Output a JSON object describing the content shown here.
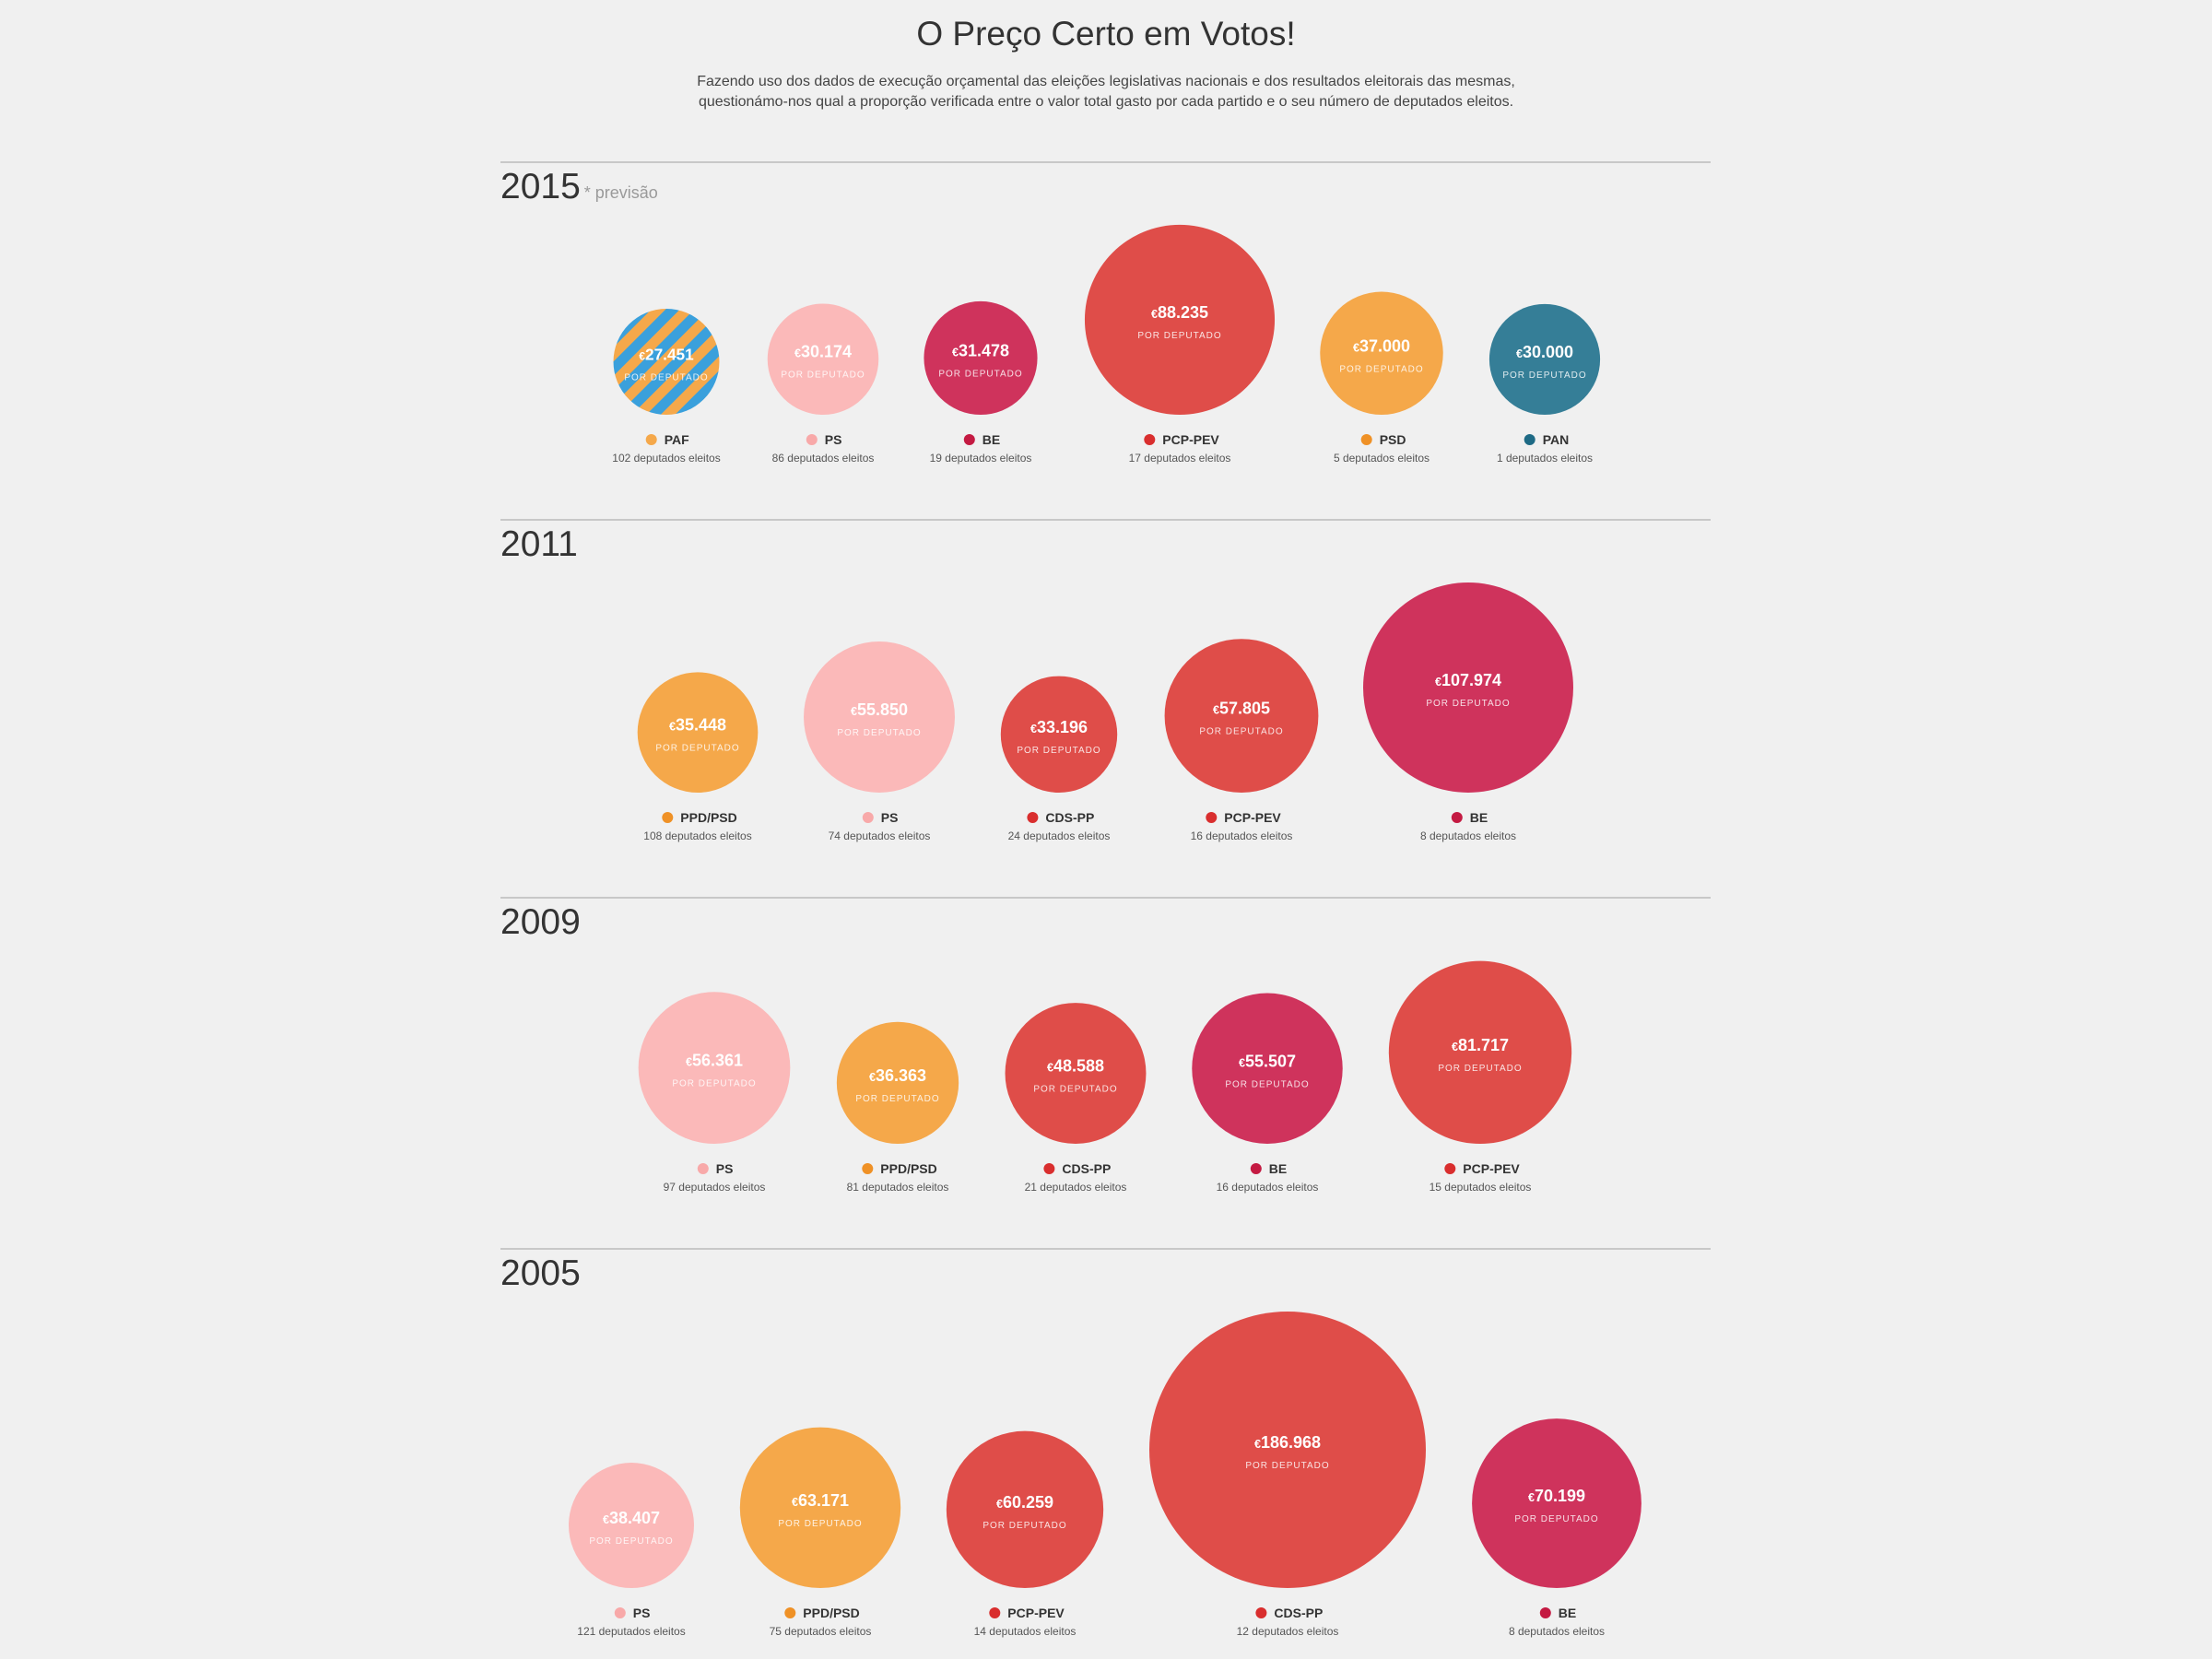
{
  "page": {
    "title": "O Preço Certo em Votos!",
    "subtitle_line1": "Fazendo uso dos dados de execução orçamental das eleições legislativas nacionais e dos resultados eleitorais das mesmas,",
    "subtitle_line2": "questionámo-nos qual a proporção verificada entre o valor total gasto por cada partido e o seu número de deputados eleitos."
  },
  "common": {
    "currency_symbol": "€",
    "per_label": "POR DEPUTADO",
    "seats_suffix": "deputados eleitos"
  },
  "colors": {
    "ps": "#fbb9b9",
    "psd": "#f5a84a",
    "cds": "#df4d49",
    "pcp": "#df4d49",
    "be": "#cf335c",
    "pan": "#357e97",
    "paf_blue": "#3aa0dc",
    "paf_orange": "#f5a84a",
    "dot_ps": "#f8a9a9",
    "dot_psd": "#ef9126",
    "dot_red": "#d92e2e",
    "dot_be": "#c41a42",
    "dot_pan": "#1e6a85"
  },
  "chart_data": [
    {
      "type": "bubble",
      "year": "2015",
      "note": "* previsão",
      "series": [
        {
          "party": "PAF",
          "cost_per_deputy": "27.451",
          "deputies": 102,
          "color": "paf"
        },
        {
          "party": "PS",
          "cost_per_deputy": "30.174",
          "deputies": 86,
          "color": "ps"
        },
        {
          "party": "BE",
          "cost_per_deputy": "31.478",
          "deputies": 19,
          "color": "be"
        },
        {
          "party": "PCP-PEV",
          "cost_per_deputy": "88.235",
          "deputies": 17,
          "color": "pcp"
        },
        {
          "party": "PSD",
          "cost_per_deputy": "37.000",
          "deputies": 5,
          "color": "psd"
        },
        {
          "party": "PAN",
          "cost_per_deputy": "30.000",
          "deputies": 1,
          "color": "pan"
        }
      ]
    },
    {
      "type": "bubble",
      "year": "2011",
      "note": "",
      "series": [
        {
          "party": "PPD/PSD",
          "cost_per_deputy": "35.448",
          "deputies": 108,
          "color": "psd"
        },
        {
          "party": "PS",
          "cost_per_deputy": "55.850",
          "deputies": 74,
          "color": "ps"
        },
        {
          "party": "CDS-PP",
          "cost_per_deputy": "33.196",
          "deputies": 24,
          "color": "cds"
        },
        {
          "party": "PCP-PEV",
          "cost_per_deputy": "57.805",
          "deputies": 16,
          "color": "pcp"
        },
        {
          "party": "BE",
          "cost_per_deputy": "107.974",
          "deputies": 8,
          "color": "be"
        }
      ]
    },
    {
      "type": "bubble",
      "year": "2009",
      "note": "",
      "series": [
        {
          "party": "PS",
          "cost_per_deputy": "56.361",
          "deputies": 97,
          "color": "ps"
        },
        {
          "party": "PPD/PSD",
          "cost_per_deputy": "36.363",
          "deputies": 81,
          "color": "psd"
        },
        {
          "party": "CDS-PP",
          "cost_per_deputy": "48.588",
          "deputies": 21,
          "color": "cds"
        },
        {
          "party": "BE",
          "cost_per_deputy": "55.507",
          "deputies": 16,
          "color": "be"
        },
        {
          "party": "PCP-PEV",
          "cost_per_deputy": "81.717",
          "deputies": 15,
          "color": "pcp"
        }
      ]
    },
    {
      "type": "bubble",
      "year": "2005",
      "note": "",
      "series": [
        {
          "party": "PS",
          "cost_per_deputy": "38.407",
          "deputies": 121,
          "color": "ps"
        },
        {
          "party": "PPD/PSD",
          "cost_per_deputy": "63.171",
          "deputies": 75,
          "color": "psd"
        },
        {
          "party": "PCP-PEV",
          "cost_per_deputy": "60.259",
          "deputies": 14,
          "color": "pcp"
        },
        {
          "party": "CDS-PP",
          "cost_per_deputy": "186.968",
          "deputies": 12,
          "color": "cds"
        },
        {
          "party": "BE",
          "cost_per_deputy": "70.199",
          "deputies": 8,
          "color": "be"
        }
      ]
    }
  ]
}
